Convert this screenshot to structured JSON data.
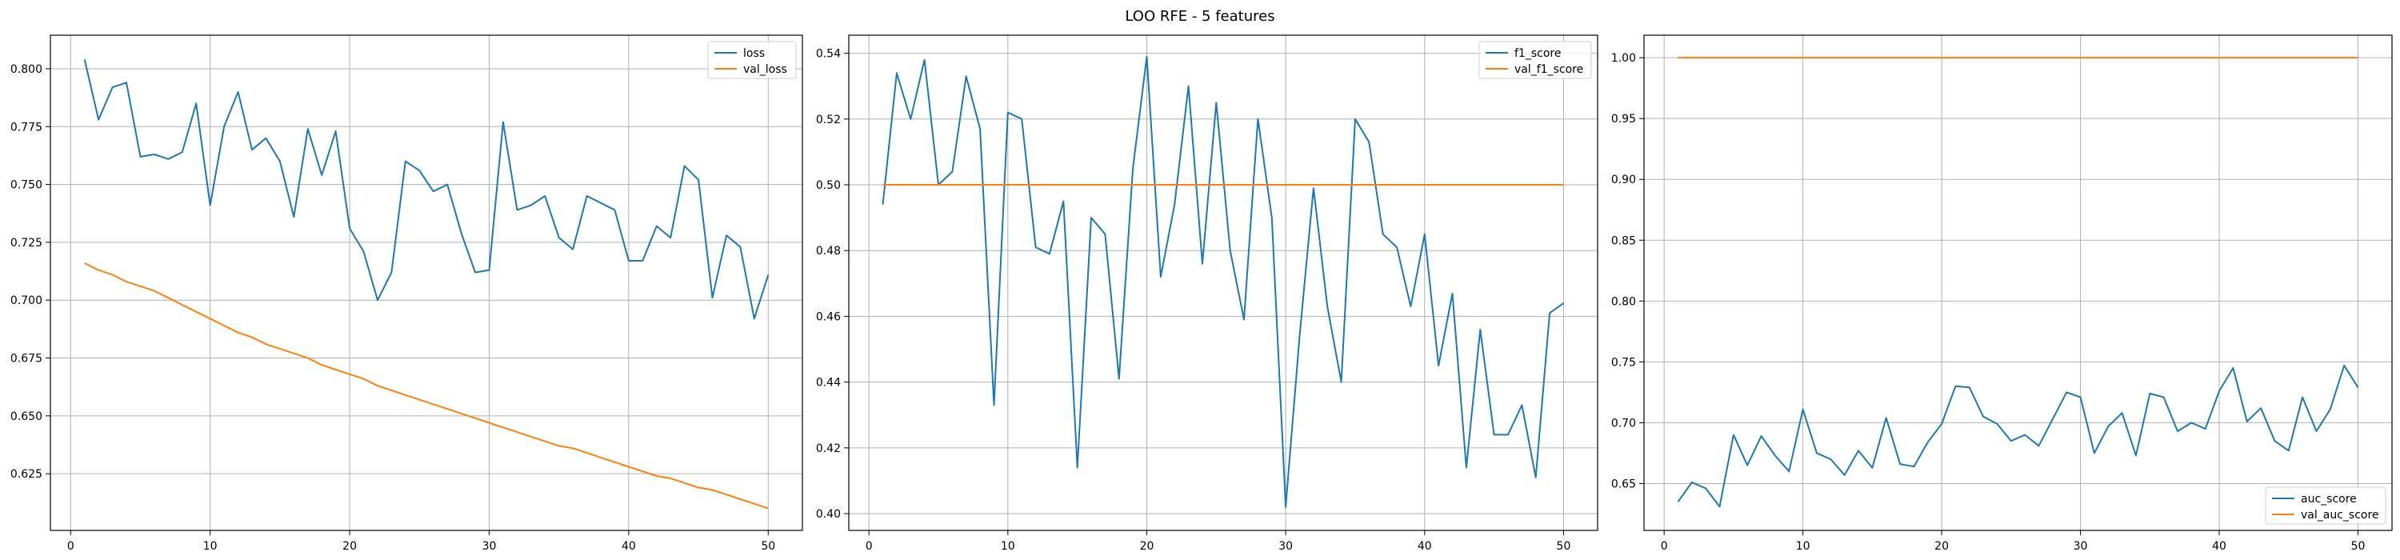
{
  "title": "LOO RFE - 5 features",
  "colors": {
    "blue": "#1f77b4",
    "orange": "#ff7f0e",
    "grid": "#b0b0b0"
  },
  "chart_data": [
    {
      "type": "line",
      "grid": true,
      "legend_position": "upper right",
      "xlim": [
        -1.45,
        52.45
      ],
      "ylim": [
        0.6005,
        0.8145
      ],
      "xticks": [
        0,
        10,
        20,
        30,
        40,
        50
      ],
      "xtick_labels": [
        "0",
        "10",
        "20",
        "30",
        "40",
        "50"
      ],
      "yticks": [
        0.625,
        0.65,
        0.675,
        0.7,
        0.725,
        0.75,
        0.775,
        0.8
      ],
      "ytick_labels": [
        "0.625",
        "0.650",
        "0.675",
        "0.700",
        "0.725",
        "0.750",
        "0.775",
        "0.800"
      ],
      "series": [
        {
          "name": "loss",
          "color": "#1f77b4",
          "x": [
            1,
            2,
            3,
            4,
            5,
            6,
            7,
            8,
            9,
            10,
            11,
            12,
            13,
            14,
            15,
            16,
            17,
            18,
            19,
            20,
            21,
            22,
            23,
            24,
            25,
            26,
            27,
            28,
            29,
            30,
            31,
            32,
            33,
            34,
            35,
            36,
            37,
            38,
            39,
            40,
            41,
            42,
            43,
            44,
            45,
            46,
            47,
            48,
            49,
            50
          ],
          "y": [
            0.804,
            0.778,
            0.792,
            0.794,
            0.762,
            0.763,
            0.761,
            0.764,
            0.785,
            0.741,
            0.775,
            0.79,
            0.765,
            0.77,
            0.76,
            0.736,
            0.774,
            0.754,
            0.773,
            0.731,
            0.721,
            0.7,
            0.712,
            0.76,
            0.756,
            0.747,
            0.75,
            0.729,
            0.712,
            0.713,
            0.777,
            0.739,
            0.741,
            0.745,
            0.727,
            0.722,
            0.745,
            0.742,
            0.739,
            0.717,
            0.717,
            0.732,
            0.727,
            0.758,
            0.752,
            0.701,
            0.728,
            0.723,
            0.692,
            0.711
          ]
        },
        {
          "name": "val_loss",
          "color": "#ff7f0e",
          "x": [
            1,
            2,
            3,
            4,
            5,
            6,
            7,
            8,
            9,
            10,
            11,
            12,
            13,
            14,
            15,
            16,
            17,
            18,
            19,
            20,
            21,
            22,
            23,
            24,
            25,
            26,
            27,
            28,
            29,
            30,
            31,
            32,
            33,
            34,
            35,
            36,
            37,
            38,
            39,
            40,
            41,
            42,
            43,
            44,
            45,
            46,
            47,
            48,
            49,
            50
          ],
          "y": [
            0.716,
            0.713,
            0.711,
            0.708,
            0.706,
            0.704,
            0.701,
            0.698,
            0.695,
            0.692,
            0.689,
            0.686,
            0.684,
            0.681,
            0.679,
            0.677,
            0.675,
            0.672,
            0.67,
            0.668,
            0.666,
            0.663,
            0.661,
            0.659,
            0.657,
            0.655,
            0.653,
            0.651,
            0.649,
            0.647,
            0.645,
            0.643,
            0.641,
            0.639,
            0.637,
            0.636,
            0.634,
            0.632,
            0.63,
            0.628,
            0.626,
            0.624,
            0.623,
            0.621,
            0.619,
            0.618,
            0.616,
            0.614,
            0.612,
            0.61
          ]
        }
      ]
    },
    {
      "type": "line",
      "grid": true,
      "legend_position": "upper right",
      "xlim": [
        -1.45,
        52.45
      ],
      "ylim": [
        0.3949,
        0.5455
      ],
      "xticks": [
        0,
        10,
        20,
        30,
        40,
        50
      ],
      "xtick_labels": [
        "0",
        "10",
        "20",
        "30",
        "40",
        "50"
      ],
      "yticks": [
        0.4,
        0.42,
        0.44,
        0.46,
        0.48,
        0.5,
        0.52,
        0.54
      ],
      "ytick_labels": [
        "0.40",
        "0.42",
        "0.44",
        "0.46",
        "0.48",
        "0.50",
        "0.52",
        "0.54"
      ],
      "series": [
        {
          "name": "f1_score",
          "color": "#1f77b4",
          "x": [
            1,
            2,
            3,
            4,
            5,
            6,
            7,
            8,
            9,
            10,
            11,
            12,
            13,
            14,
            15,
            16,
            17,
            18,
            19,
            20,
            21,
            22,
            23,
            24,
            25,
            26,
            27,
            28,
            29,
            30,
            31,
            32,
            33,
            34,
            35,
            36,
            37,
            38,
            39,
            40,
            41,
            42,
            43,
            44,
            45,
            46,
            47,
            48,
            49,
            50
          ],
          "y": [
            0.494,
            0.534,
            0.52,
            0.538,
            0.5,
            0.504,
            0.533,
            0.517,
            0.433,
            0.522,
            0.52,
            0.481,
            0.479,
            0.495,
            0.414,
            0.49,
            0.485,
            0.441,
            0.505,
            0.539,
            0.472,
            0.494,
            0.53,
            0.476,
            0.525,
            0.48,
            0.459,
            0.52,
            0.49,
            0.402,
            0.454,
            0.499,
            0.463,
            0.44,
            0.52,
            0.513,
            0.485,
            0.481,
            0.463,
            0.485,
            0.445,
            0.467,
            0.414,
            0.456,
            0.424,
            0.424,
            0.433,
            0.411,
            0.461,
            0.464
          ]
        },
        {
          "name": "val_f1_score",
          "color": "#ff7f0e",
          "x": [
            1,
            50
          ],
          "y": [
            0.5,
            0.5
          ]
        }
      ]
    },
    {
      "type": "line",
      "grid": true,
      "legend_position": "lower right",
      "xlim": [
        -1.45,
        52.45
      ],
      "ylim": [
        0.6115,
        1.0185
      ],
      "xticks": [
        0,
        10,
        20,
        30,
        40,
        50
      ],
      "xtick_labels": [
        "0",
        "10",
        "20",
        "30",
        "40",
        "50"
      ],
      "yticks": [
        0.65,
        0.7,
        0.75,
        0.8,
        0.85,
        0.9,
        0.95,
        1.0
      ],
      "ytick_labels": [
        "0.65",
        "0.70",
        "0.75",
        "0.80",
        "0.85",
        "0.90",
        "0.95",
        "1.00"
      ],
      "series": [
        {
          "name": "auc_score",
          "color": "#1f77b4",
          "x": [
            1,
            2,
            3,
            4,
            5,
            6,
            7,
            8,
            9,
            10,
            11,
            12,
            13,
            14,
            15,
            16,
            17,
            18,
            19,
            20,
            21,
            22,
            23,
            24,
            25,
            26,
            27,
            28,
            29,
            30,
            31,
            32,
            33,
            34,
            35,
            36,
            37,
            38,
            39,
            40,
            41,
            42,
            43,
            44,
            45,
            46,
            47,
            48,
            49,
            50
          ],
          "y": [
            0.635,
            0.651,
            0.646,
            0.631,
            0.69,
            0.665,
            0.689,
            0.673,
            0.66,
            0.711,
            0.675,
            0.67,
            0.657,
            0.677,
            0.663,
            0.704,
            0.666,
            0.664,
            0.684,
            0.699,
            0.73,
            0.729,
            0.705,
            0.699,
            0.685,
            0.69,
            0.681,
            0.703,
            0.725,
            0.721,
            0.675,
            0.697,
            0.708,
            0.673,
            0.724,
            0.721,
            0.693,
            0.7,
            0.695,
            0.726,
            0.745,
            0.701,
            0.712,
            0.685,
            0.677,
            0.721,
            0.693,
            0.711,
            0.747,
            0.729
          ]
        },
        {
          "name": "val_auc_score",
          "color": "#ff7f0e",
          "x": [
            1,
            50
          ],
          "y": [
            1.0,
            1.0
          ]
        }
      ]
    }
  ]
}
